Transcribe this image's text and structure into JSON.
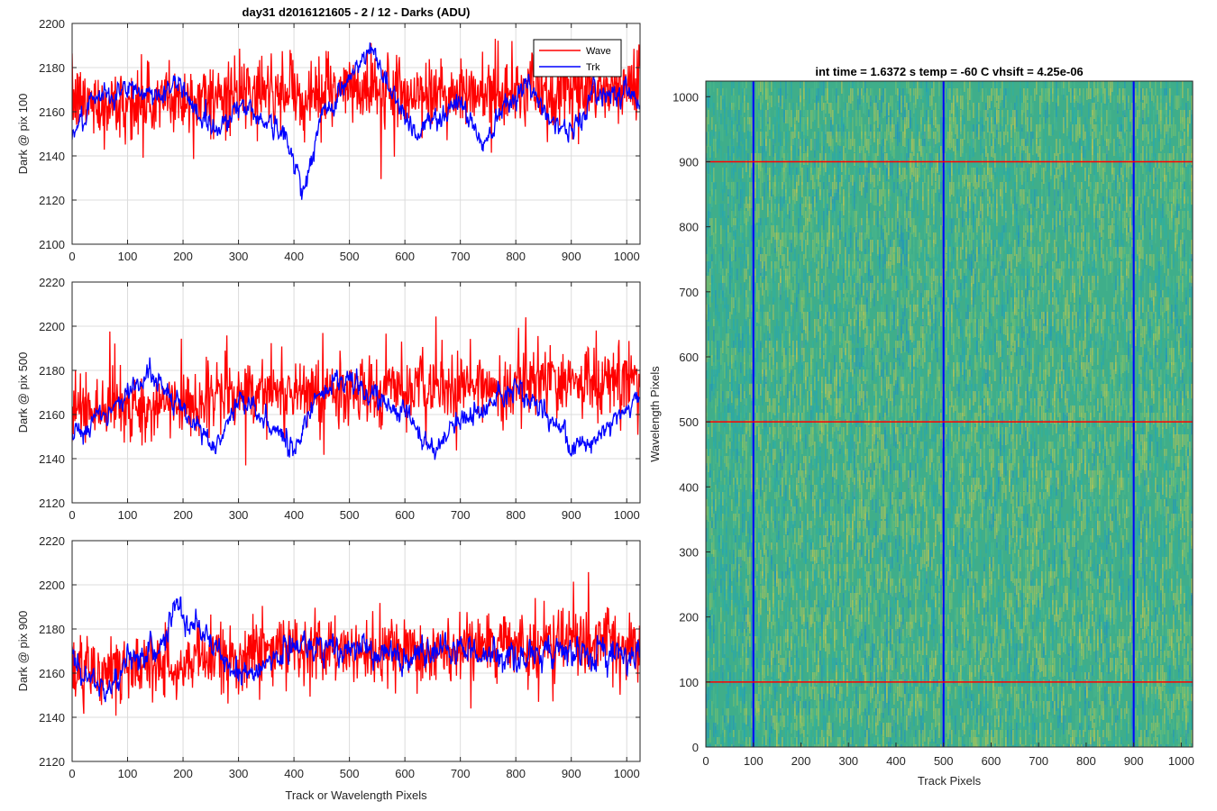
{
  "figure": {
    "suptitle": "day31 d2016121605 - 2 / 12 - Darks (ADU)",
    "colors": {
      "wave": "#ff0000",
      "trk": "#0000ff",
      "grid": "#dcdcdc",
      "axes": "#262626"
    }
  },
  "chart_data": [
    {
      "type": "line",
      "panel": "top-left",
      "title": "day31 d2016121605 - 2 / 12 - Darks (ADU)",
      "xlabel": "",
      "ylabel": "Dark @ pix 100",
      "xlim": [
        0,
        1024
      ],
      "ylim": [
        2100,
        2200
      ],
      "xticks": [
        0,
        100,
        200,
        300,
        400,
        500,
        600,
        700,
        800,
        900,
        1000
      ],
      "yticks": [
        2100,
        2120,
        2140,
        2160,
        2180,
        2200
      ],
      "grid": true,
      "legend": {
        "position": "top-right",
        "entries": [
          "Wave",
          "Trk"
        ]
      },
      "series": [
        {
          "name": "Wave",
          "color": "#ff0000",
          "points": 1024,
          "anchors": [
            [
              0,
              2165
            ],
            [
              100,
              2163
            ],
            [
              200,
              2166
            ],
            [
              300,
              2167
            ],
            [
              400,
              2168
            ],
            [
              500,
              2170
            ],
            [
              600,
              2169
            ],
            [
              700,
              2168
            ],
            [
              800,
              2169
            ],
            [
              900,
              2168
            ],
            [
              1024,
              2172
            ]
          ],
          "noise": 11
        },
        {
          "name": "Trk",
          "color": "#0000ff",
          "points": 1024,
          "anchors": [
            [
              0,
              2150
            ],
            [
              50,
              2166
            ],
            [
              100,
              2170
            ],
            [
              150,
              2168
            ],
            [
              200,
              2172
            ],
            [
              230,
              2158
            ],
            [
              260,
              2152
            ],
            [
              300,
              2163
            ],
            [
              340,
              2158
            ],
            [
              380,
              2150
            ],
            [
              420,
              2125
            ],
            [
              450,
              2158
            ],
            [
              500,
              2175
            ],
            [
              540,
              2188
            ],
            [
              580,
              2168
            ],
            [
              620,
              2150
            ],
            [
              660,
              2158
            ],
            [
              700,
              2165
            ],
            [
              740,
              2145
            ],
            [
              780,
              2165
            ],
            [
              820,
              2172
            ],
            [
              860,
              2158
            ],
            [
              900,
              2150
            ],
            [
              940,
              2168
            ],
            [
              1000,
              2170
            ],
            [
              1024,
              2165
            ]
          ],
          "noise": 4
        }
      ]
    },
    {
      "type": "line",
      "panel": "middle-left",
      "xlabel": "",
      "ylabel": "Dark @ pix 500",
      "xlim": [
        0,
        1024
      ],
      "ylim": [
        2120,
        2220
      ],
      "xticks": [
        0,
        100,
        200,
        300,
        400,
        500,
        600,
        700,
        800,
        900,
        1000
      ],
      "yticks": [
        2120,
        2140,
        2160,
        2180,
        2200,
        2220
      ],
      "grid": true,
      "series": [
        {
          "name": "Wave",
          "color": "#ff0000",
          "points": 1024,
          "anchors": [
            [
              0,
              2160
            ],
            [
              200,
              2165
            ],
            [
              350,
              2172
            ],
            [
              500,
              2170
            ],
            [
              700,
              2172
            ],
            [
              900,
              2175
            ],
            [
              1024,
              2175
            ]
          ],
          "noise": 11
        },
        {
          "name": "Trk",
          "color": "#0000ff",
          "points": 1024,
          "anchors": [
            [
              0,
              2150
            ],
            [
              60,
              2162
            ],
            [
              100,
              2170
            ],
            [
              140,
              2178
            ],
            [
              200,
              2162
            ],
            [
              260,
              2145
            ],
            [
              300,
              2168
            ],
            [
              340,
              2158
            ],
            [
              400,
              2145
            ],
            [
              450,
              2172
            ],
            [
              500,
              2175
            ],
            [
              550,
              2168
            ],
            [
              600,
              2160
            ],
            [
              650,
              2142
            ],
            [
              700,
              2158
            ],
            [
              760,
              2165
            ],
            [
              800,
              2170
            ],
            [
              860,
              2160
            ],
            [
              900,
              2145
            ],
            [
              960,
              2152
            ],
            [
              1024,
              2170
            ]
          ],
          "noise": 4
        }
      ]
    },
    {
      "type": "line",
      "panel": "bottom-left",
      "xlabel": "Track or Wavelength Pixels",
      "ylabel": "Dark @ pix 900",
      "xlim": [
        0,
        1024
      ],
      "ylim": [
        2120,
        2220
      ],
      "xticks": [
        0,
        100,
        200,
        300,
        400,
        500,
        600,
        700,
        800,
        900,
        1000
      ],
      "yticks": [
        2120,
        2140,
        2160,
        2180,
        2200,
        2220
      ],
      "grid": true,
      "series": [
        {
          "name": "Wave",
          "color": "#ff0000",
          "points": 1024,
          "anchors": [
            [
              0,
              2160
            ],
            [
              200,
              2165
            ],
            [
              400,
              2172
            ],
            [
              600,
              2168
            ],
            [
              800,
              2172
            ],
            [
              1024,
              2175
            ]
          ],
          "noise": 11
        },
        {
          "name": "Trk",
          "color": "#0000ff",
          "points": 1024,
          "anchors": [
            [
              0,
              2165
            ],
            [
              60,
              2150
            ],
            [
              100,
              2165
            ],
            [
              150,
              2170
            ],
            [
              190,
              2188
            ],
            [
              230,
              2180
            ],
            [
              280,
              2165
            ],
            [
              330,
              2160
            ],
            [
              400,
              2172
            ],
            [
              500,
              2170
            ],
            [
              600,
              2168
            ],
            [
              700,
              2170
            ],
            [
              800,
              2168
            ],
            [
              900,
              2170
            ],
            [
              1024,
              2168
            ]
          ],
          "noise": 5
        }
      ]
    },
    {
      "type": "heatmap",
      "panel": "right",
      "title": "int time = 1.6372 s    temp = -60 C    vhsift = 4.25e-06",
      "xlabel": "Track Pixels",
      "ylabel": "Wavelength Pixels",
      "xlim": [
        0,
        1024
      ],
      "ylim": [
        0,
        1024
      ],
      "xticks": [
        0,
        100,
        200,
        300,
        400,
        500,
        600,
        700,
        800,
        900,
        1000
      ],
      "yticks": [
        0,
        100,
        200,
        300,
        400,
        500,
        600,
        700,
        800,
        900,
        1000
      ],
      "colormap": "parula",
      "base_color": "#3fae8a",
      "vertical_lines": {
        "at": [
          100,
          500,
          900
        ],
        "color": "#0000ff"
      },
      "horizontal_lines": {
        "at": [
          100,
          500,
          900
        ],
        "color": "#ff0000"
      }
    }
  ]
}
